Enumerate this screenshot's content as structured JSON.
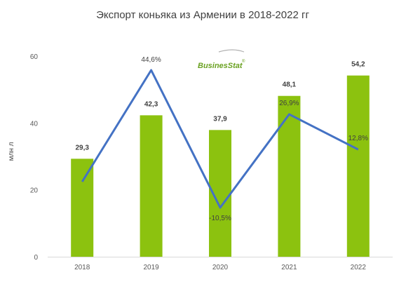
{
  "chart_data": {
    "type": "bar",
    "title": "Экспорт коньяка из Армении в 2018-2022 гг",
    "ylabel": "млн л",
    "categories": [
      "2018",
      "2019",
      "2020",
      "2021",
      "2022"
    ],
    "ylim": [
      0,
      60
    ],
    "yticks": [
      "0",
      "20",
      "40",
      "60"
    ],
    "bar_color": "#8cc20f",
    "line_color": "#4472c4",
    "series": [
      {
        "type": "bar",
        "values": [
          29.3,
          42.3,
          37.9,
          48.1,
          54.2
        ],
        "labels": [
          "29,3",
          "42,3",
          "37,9",
          "48,1",
          "54,2"
        ]
      },
      {
        "type": "line",
        "values": [
          null,
          44.6,
          -10.5,
          26.9,
          12.8
        ],
        "labels": [
          "",
          "44,6%",
          "-10,5%",
          "26,9%",
          "12,8%"
        ]
      }
    ]
  },
  "logo": {
    "text": "BusinesStat",
    "mark": "®"
  }
}
